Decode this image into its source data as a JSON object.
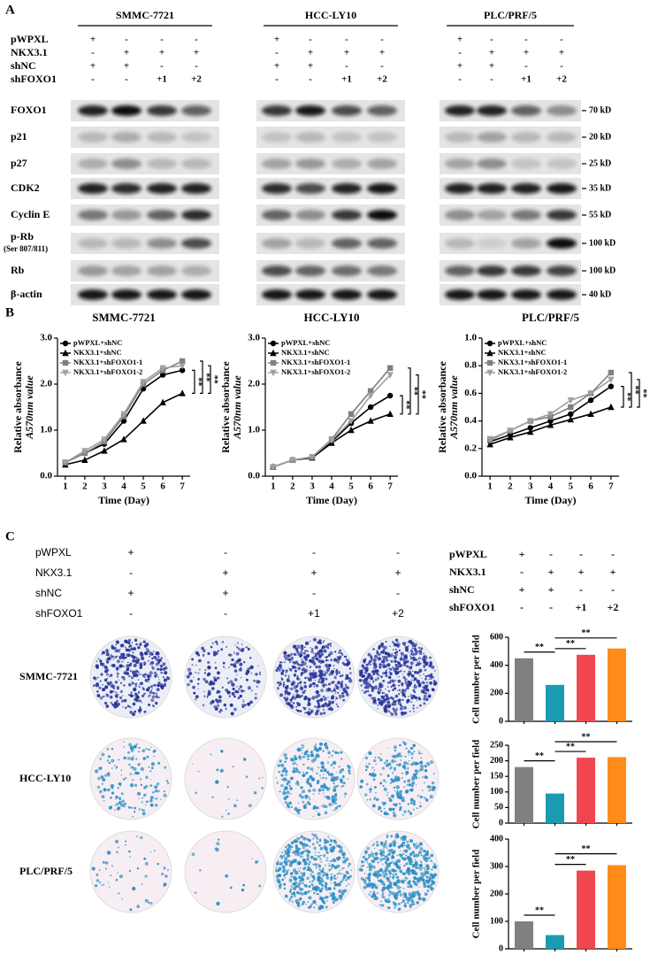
{
  "panel_a": {
    "letter": "A",
    "groups": [
      "SMMC-7721",
      "HCC-LY10",
      "PLC/PRF/5"
    ],
    "conditions": [
      {
        "label": "pWPXL",
        "marks": [
          "+",
          "-",
          "-",
          "-"
        ]
      },
      {
        "label": "NKX3.1",
        "marks": [
          "-",
          "+",
          "+",
          "+"
        ]
      },
      {
        "label": "shNC",
        "marks": [
          "+",
          "+",
          "-",
          "-"
        ]
      },
      {
        "label": "shFOXO1",
        "marks": [
          "-",
          "-",
          "+1",
          "+2"
        ]
      }
    ],
    "proteins": [
      {
        "name": "FOXO1",
        "size": "70 kD"
      },
      {
        "name": "p21",
        "size": "20 kD"
      },
      {
        "name": "p27",
        "size": "25 kD"
      },
      {
        "name": "CDK2",
        "size": "35 kD"
      },
      {
        "name": "Cyclin E",
        "size": "55 kD"
      },
      {
        "name": "p-Rb",
        "note": "(Ser 807/811)",
        "size": "100 kD"
      },
      {
        "name": "Rb",
        "size": "100 kD"
      },
      {
        "name": "β-actin",
        "size": "40 kD"
      }
    ]
  },
  "panel_b": {
    "letter": "B"
  },
  "panel_c": {
    "letter": "C",
    "cell_lines": [
      "SMMC-7721",
      "HCC-LY10",
      "PLC/PRF/5"
    ]
  },
  "chart_data": [
    {
      "type": "line",
      "title": "SMMC-7721",
      "ylabel": "Relative absorbance",
      "ylabel_sub": "A570nm value",
      "xlabel": "Time (Day)",
      "x": [
        1,
        2,
        3,
        4,
        5,
        6,
        7
      ],
      "xlim": [
        0.6,
        7.4
      ],
      "xticks": [
        1,
        2,
        3,
        4,
        5,
        6,
        7
      ],
      "ylim": [
        0,
        3
      ],
      "yticks": [
        {
          "value": 0,
          "label": "0.0"
        },
        {
          "value": 1,
          "label": "1.0"
        },
        {
          "value": 2,
          "label": "2.0"
        },
        {
          "value": 3,
          "label": "3.0"
        }
      ],
      "annotations": [
        "**",
        "**",
        "**"
      ],
      "series": [
        {
          "name": "pWPXL+shNC",
          "color": "#000000",
          "marker": "circle",
          "values": [
            0.3,
            0.5,
            0.7,
            1.2,
            1.9,
            2.2,
            2.3
          ]
        },
        {
          "name": "NKX3.1+shNC",
          "color": "#000000",
          "marker": "triangle",
          "values": [
            0.25,
            0.35,
            0.55,
            0.8,
            1.2,
            1.6,
            1.8
          ]
        },
        {
          "name": "NKX3.1+shFOXO1-1",
          "color": "#808080",
          "marker": "square",
          "values": [
            0.3,
            0.5,
            0.75,
            1.3,
            2.0,
            2.3,
            2.5
          ]
        },
        {
          "name": "NKX3.1+shFOXO1-2",
          "color": "#a0a0a0",
          "marker": "triangle-down",
          "values": [
            0.3,
            0.55,
            0.8,
            1.35,
            2.05,
            2.35,
            2.4
          ]
        }
      ]
    },
    {
      "type": "line",
      "title": "HCC-LY10",
      "ylabel": "Relative absorbance",
      "ylabel_sub": "A570nm value",
      "xlabel": "Time (Day)",
      "x": [
        1,
        2,
        3,
        4,
        5,
        6,
        7
      ],
      "xlim": [
        0.6,
        7.4
      ],
      "xticks": [
        1,
        2,
        3,
        4,
        5,
        6,
        7
      ],
      "ylim": [
        0,
        3
      ],
      "yticks": [
        {
          "value": 0,
          "label": "0.0"
        },
        {
          "value": 1,
          "label": "1.0"
        },
        {
          "value": 2,
          "label": "2.0"
        },
        {
          "value": 3,
          "label": "3.0"
        }
      ],
      "annotations": [
        "**",
        "**",
        "**"
      ],
      "series": [
        {
          "name": "pWPXL+shNC",
          "color": "#000000",
          "marker": "circle",
          "values": [
            0.2,
            0.35,
            0.4,
            0.75,
            1.15,
            1.5,
            1.75
          ]
        },
        {
          "name": "NKX3.1+shNC",
          "color": "#000000",
          "marker": "triangle",
          "values": [
            0.2,
            0.35,
            0.4,
            0.72,
            1.0,
            1.2,
            1.35
          ]
        },
        {
          "name": "NKX3.1+shFOXO1-1",
          "color": "#808080",
          "marker": "square",
          "values": [
            0.2,
            0.35,
            0.42,
            0.8,
            1.35,
            1.85,
            2.35
          ]
        },
        {
          "name": "NKX3.1+shFOXO1-2",
          "color": "#a0a0a0",
          "marker": "triangle-down",
          "values": [
            0.2,
            0.35,
            0.42,
            0.78,
            1.2,
            1.75,
            2.2
          ]
        }
      ]
    },
    {
      "type": "line",
      "title": "PLC/PRF/5",
      "ylabel": "Relative absorbance",
      "ylabel_sub": "A570nm value",
      "xlabel": "Time (Day)",
      "x": [
        1,
        2,
        3,
        4,
        5,
        6,
        7
      ],
      "xlim": [
        0.6,
        7.4
      ],
      "xticks": [
        1,
        2,
        3,
        4,
        5,
        6,
        7
      ],
      "ylim": [
        0,
        1
      ],
      "yticks": [
        {
          "value": 0,
          "label": "0.0"
        },
        {
          "value": 0.2,
          "label": "0.2"
        },
        {
          "value": 0.4,
          "label": "0.4"
        },
        {
          "value": 0.6,
          "label": "0.6"
        },
        {
          "value": 0.8,
          "label": "0.8"
        },
        {
          "value": 1,
          "label": "1.0"
        }
      ],
      "annotations": [
        "**",
        "**",
        "**"
      ],
      "series": [
        {
          "name": "pWPXL+shNC",
          "color": "#000000",
          "marker": "circle",
          "values": [
            0.25,
            0.3,
            0.35,
            0.4,
            0.45,
            0.55,
            0.65
          ]
        },
        {
          "name": "NKX3.1+shNC",
          "color": "#000000",
          "marker": "triangle",
          "values": [
            0.23,
            0.28,
            0.32,
            0.37,
            0.41,
            0.45,
            0.5
          ]
        },
        {
          "name": "NKX3.1+shFOXO1-1",
          "color": "#808080",
          "marker": "square",
          "values": [
            0.26,
            0.33,
            0.4,
            0.43,
            0.5,
            0.6,
            0.75
          ]
        },
        {
          "name": "NKX3.1+shFOXO1-2",
          "color": "#a0a0a0",
          "marker": "triangle-down",
          "values": [
            0.27,
            0.33,
            0.4,
            0.45,
            0.55,
            0.6,
            0.7
          ]
        }
      ]
    },
    {
      "type": "bar",
      "ylabel": "Cell number per field",
      "values": [
        450,
        260,
        475,
        520
      ],
      "colors": [
        "#808080",
        "#1a9bb0",
        "#f0474e",
        "#ff8c1a"
      ],
      "ylim": [
        0,
        600
      ],
      "yticks": [
        0,
        200,
        400,
        600
      ],
      "annotations": [
        "**",
        "**",
        "**"
      ]
    },
    {
      "type": "bar",
      "ylabel": "Cell number per field",
      "values": [
        180,
        95,
        210,
        212
      ],
      "colors": [
        "#808080",
        "#1a9bb0",
        "#f0474e",
        "#ff8c1a"
      ],
      "ylim": [
        0,
        250
      ],
      "yticks": [
        0,
        50,
        100,
        150,
        200,
        250
      ],
      "annotations": [
        "**",
        "**",
        "**"
      ]
    },
    {
      "type": "bar",
      "ylabel": "Cell number per field",
      "values": [
        100,
        50,
        285,
        305
      ],
      "colors": [
        "#808080",
        "#1a9bb0",
        "#f0474e",
        "#ff8c1a"
      ],
      "ylim": [
        0,
        400
      ],
      "yticks": [
        0,
        100,
        200,
        300,
        400
      ],
      "annotations": [
        "**",
        "**",
        "**"
      ]
    }
  ]
}
